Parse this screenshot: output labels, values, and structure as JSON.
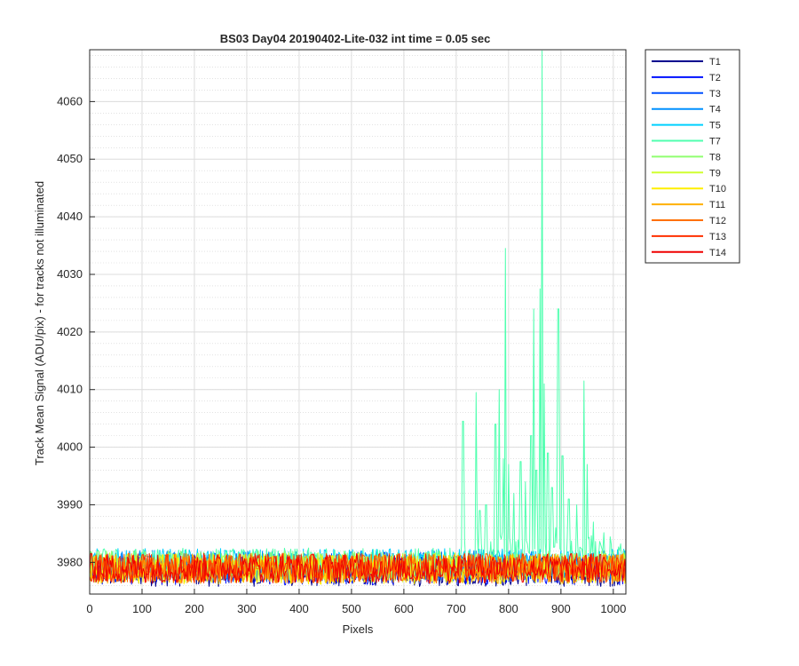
{
  "chart_data": {
    "type": "line",
    "title": "BS03 Day04 20190402-Lite-032 int time = 0.05 sec",
    "xlabel": "Pixels",
    "ylabel": "Track Mean Signal (ADU/pix) - for tracks not illuminated",
    "xlim": [
      0,
      1024
    ],
    "ylim": [
      3974.5,
      4069
    ],
    "xticks": [
      0,
      100,
      200,
      300,
      400,
      500,
      600,
      700,
      800,
      900,
      1000
    ],
    "yticks": [
      3980,
      3990,
      4000,
      4010,
      4020,
      4030,
      4040,
      4050,
      4060
    ],
    "grid": true,
    "minor_grid_y": true,
    "legend_placement": "outside-top-right",
    "baseline": {
      "mean": 3979,
      "spread": 2.6
    },
    "series": [
      {
        "name": "T1",
        "color": "#00008f",
        "baseline_offset": -0.6
      },
      {
        "name": "T2",
        "color": "#0010ff",
        "baseline_offset": -0.3
      },
      {
        "name": "T3",
        "color": "#0050ff",
        "baseline_offset": 0.2
      },
      {
        "name": "T4",
        "color": "#0090ff",
        "baseline_offset": 0.5
      },
      {
        "name": "T5",
        "color": "#00d0ff",
        "baseline_offset": 0.8
      },
      {
        "name": "T7",
        "color": "#50ffaf",
        "baseline_offset": 0.9,
        "spike_region_start": 710,
        "spikes": [
          {
            "x": 713,
            "y": 4004.5
          },
          {
            "x": 738,
            "y": 4009.5
          },
          {
            "x": 745,
            "y": 3989
          },
          {
            "x": 757,
            "y": 3990
          },
          {
            "x": 775,
            "y": 4004
          },
          {
            "x": 782,
            "y": 4010
          },
          {
            "x": 790,
            "y": 3998
          },
          {
            "x": 794,
            "y": 4034.5
          },
          {
            "x": 800,
            "y": 3997
          },
          {
            "x": 810,
            "y": 3992
          },
          {
            "x": 823,
            "y": 3997.5
          },
          {
            "x": 832,
            "y": 3994
          },
          {
            "x": 843,
            "y": 4002
          },
          {
            "x": 848,
            "y": 4024
          },
          {
            "x": 853,
            "y": 3996
          },
          {
            "x": 860,
            "y": 4027.5
          },
          {
            "x": 864,
            "y": 4068.8
          },
          {
            "x": 868,
            "y": 4011
          },
          {
            "x": 875,
            "y": 3999
          },
          {
            "x": 883,
            "y": 3993
          },
          {
            "x": 895,
            "y": 4024
          },
          {
            "x": 903,
            "y": 3998.5
          },
          {
            "x": 915,
            "y": 3991
          },
          {
            "x": 930,
            "y": 3990
          },
          {
            "x": 944,
            "y": 4011.5
          },
          {
            "x": 950,
            "y": 3997
          },
          {
            "x": 962,
            "y": 3987
          }
        ]
      },
      {
        "name": "T8",
        "color": "#90ff70",
        "baseline_offset": 0.4
      },
      {
        "name": "T9",
        "color": "#d0ff30",
        "baseline_offset": 0.1
      },
      {
        "name": "T10",
        "color": "#ffef00",
        "baseline_offset": -0.2
      },
      {
        "name": "T11",
        "color": "#ffb000",
        "baseline_offset": -0.1
      },
      {
        "name": "T12",
        "color": "#ff7000",
        "baseline_offset": 0.0
      },
      {
        "name": "T13",
        "color": "#ff3000",
        "baseline_offset": 0.0
      },
      {
        "name": "T14",
        "color": "#ef0000",
        "baseline_offset": 0.0
      }
    ]
  }
}
